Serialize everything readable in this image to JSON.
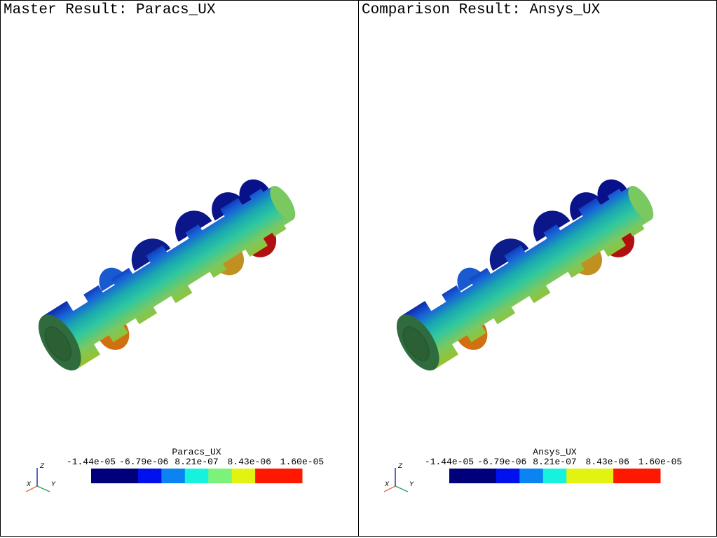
{
  "panels": [
    {
      "title": "Master Result: Paracs_UX",
      "legend": {
        "title": "Paracs_UX",
        "ticks": [
          "-1.44e-05",
          "-6.79e-06",
          "8.21e-07",
          "8.43e-06",
          "1.60e-05"
        ],
        "colors": [
          "#00007a",
          "#00007a",
          "#0011ee",
          "#0b84f2",
          "#17f2df",
          "#7df27a",
          "#e2f211",
          "#ff1800",
          "#ff1800"
        ]
      },
      "axes": [
        "X",
        "Y",
        "Z"
      ]
    },
    {
      "title": "Comparison Result: Ansys_UX",
      "legend": {
        "title": "Ansys_UX",
        "ticks": [
          "-1.44e-05",
          "-6.79e-06",
          "8.21e-07",
          "8.43e-06",
          "1.60e-05"
        ],
        "colors": [
          "#00007a",
          "#00007a",
          "#0011ee",
          "#0b84f2",
          "#17f2df",
          "#e2f211",
          "#e2f211",
          "#ff1800",
          "#ff1800"
        ]
      },
      "axes": [
        "X",
        "Y",
        "Z"
      ]
    }
  ]
}
